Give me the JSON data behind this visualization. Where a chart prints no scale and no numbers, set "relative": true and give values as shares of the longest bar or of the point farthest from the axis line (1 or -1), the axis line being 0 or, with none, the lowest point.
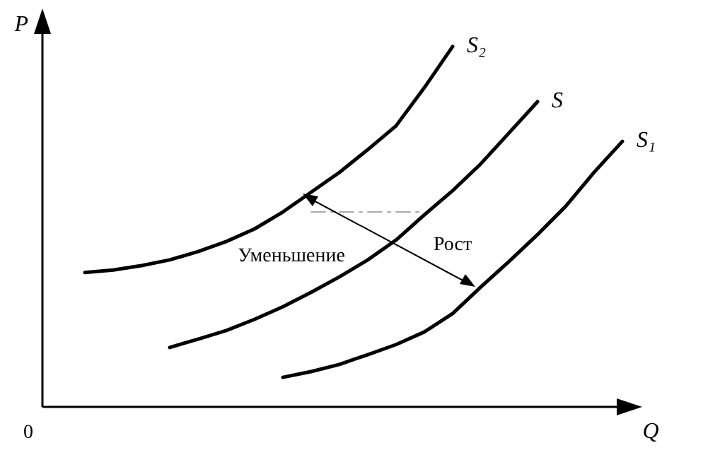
{
  "chart_data": {
    "type": "line",
    "relative": true,
    "xlabel": "Q",
    "ylabel": "P",
    "categories": [
      null,
      null,
      null,
      null,
      null,
      null,
      null,
      null,
      null,
      null,
      null,
      null,
      null,
      null,
      null,
      null,
      null,
      null,
      null,
      null,
      null
    ],
    "series": [
      {
        "name": "S₂",
        "color": "#000000",
        "values": [
          null,
          0.373,
          0.38,
          0.392,
          0.408,
          0.431,
          0.459,
          0.494,
          0.541,
          0.596,
          0.651,
          0.714,
          0.78,
          0.886,
          1.0,
          null,
          null,
          null,
          null,
          null,
          null
        ]
      },
      {
        "name": "S",
        "color": "#000000",
        "values": [
          null,
          null,
          null,
          null,
          0.165,
          0.188,
          0.212,
          0.243,
          0.278,
          0.318,
          0.361,
          0.408,
          0.463,
          0.533,
          0.6,
          0.675,
          0.761,
          0.847,
          null,
          null,
          null
        ]
      },
      {
        "name": "S₁",
        "color": "#000000",
        "values": [
          null,
          null,
          null,
          null,
          null,
          null,
          null,
          null,
          0.082,
          0.098,
          0.118,
          0.145,
          0.173,
          0.208,
          0.259,
          0.333,
          0.404,
          0.478,
          0.557,
          0.651,
          0.737
        ]
      },
      {
        "color": "#aaaaaa",
        "line_style": "dashed",
        "values": [
          null,
          null,
          null,
          null,
          null,
          null,
          null,
          null,
          null,
          0.541,
          0.541,
          0.541,
          0.541,
          0.541,
          null,
          null,
          null,
          null,
          null,
          null,
          null
        ]
      }
    ],
    "annotations": [
      "0",
      "Уменьшение",
      "Рост"
    ],
    "grid": false,
    "legend": false,
    "marker": "none"
  }
}
